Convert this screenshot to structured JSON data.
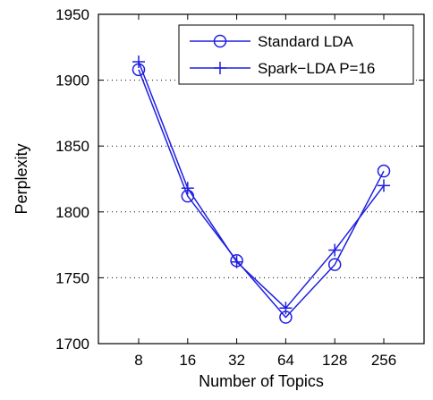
{
  "chart_data": {
    "type": "line",
    "title": "",
    "xlabel": "Number of Topics",
    "ylabel": "Perplexity",
    "categories": [
      "8",
      "16",
      "32",
      "64",
      "128",
      "256"
    ],
    "ylim": [
      1700,
      1950
    ],
    "yticks": [
      1700,
      1750,
      1800,
      1850,
      1900,
      1950
    ],
    "grid": "horizontal-dotted",
    "legend": "top-right",
    "series": [
      {
        "name": "Standard LDA",
        "marker": "circle",
        "color": "#1f1fe0",
        "values": [
          1908,
          1812,
          1763,
          1720,
          1760,
          1831
        ]
      },
      {
        "name": "Spark−LDA P=16",
        "marker": "plus",
        "color": "#1f1fe0",
        "values": [
          1914,
          1818,
          1762,
          1727,
          1771,
          1820
        ]
      }
    ]
  }
}
